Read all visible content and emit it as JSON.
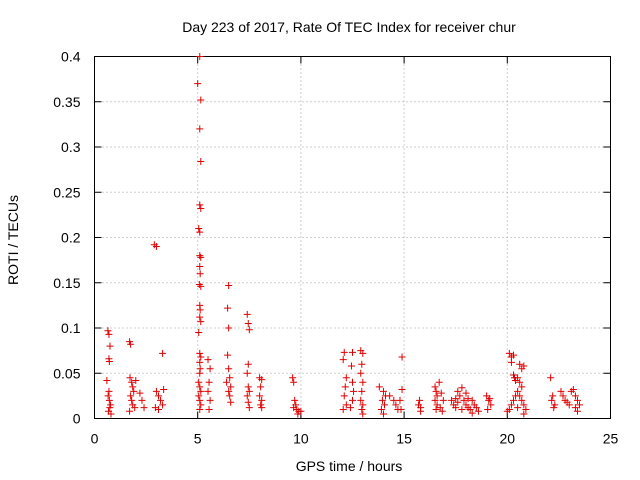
{
  "chart_data": {
    "type": "scatter",
    "title": "Day 223 of 2017, Rate Of TEC Index for receiver chur",
    "xlabel": "GPS time / hours",
    "ylabel": "ROTI / TECUs",
    "xlim": [
      0,
      25
    ],
    "ylim": [
      0,
      0.4
    ],
    "xticks": [
      0,
      5,
      10,
      15,
      20,
      25
    ],
    "xtick_labels": [
      "0",
      "5",
      "10",
      "15",
      "20",
      "25"
    ],
    "yticks": [
      0,
      0.05,
      0.1,
      0.15,
      0.2,
      0.25,
      0.3,
      0.35,
      0.4
    ],
    "ytick_labels": [
      "0",
      "0.05",
      "0.1",
      "0.15",
      "0.2",
      "0.25",
      "0.3",
      "0.35",
      "0.4"
    ],
    "grid": true,
    "marker": "plus",
    "color": "#e00000",
    "series": [
      {
        "name": "ROTI",
        "points": [
          [
            0.6,
            0.042
          ],
          [
            0.65,
            0.097
          ],
          [
            0.7,
            0.093
          ],
          [
            0.7,
            0.066
          ],
          [
            0.72,
            0.063
          ],
          [
            0.75,
            0.08
          ],
          [
            0.7,
            0.03
          ],
          [
            0.72,
            0.02
          ],
          [
            0.74,
            0.012
          ],
          [
            0.68,
            0.008
          ],
          [
            0.8,
            0.005
          ],
          [
            0.78,
            0.015
          ],
          [
            0.66,
            0.025
          ],
          [
            1.7,
            0.085
          ],
          [
            1.75,
            0.082
          ],
          [
            1.72,
            0.045
          ],
          [
            1.8,
            0.04
          ],
          [
            1.85,
            0.035
          ],
          [
            1.9,
            0.03
          ],
          [
            1.75,
            0.025
          ],
          [
            1.8,
            0.02
          ],
          [
            1.85,
            0.015
          ],
          [
            1.95,
            0.012
          ],
          [
            1.7,
            0.008
          ],
          [
            2.0,
            0.042
          ],
          [
            2.2,
            0.028
          ],
          [
            2.3,
            0.02
          ],
          [
            2.4,
            0.012
          ],
          [
            2.9,
            0.192
          ],
          [
            3.0,
            0.19
          ],
          [
            3.3,
            0.072
          ],
          [
            3.0,
            0.03
          ],
          [
            3.1,
            0.025
          ],
          [
            3.2,
            0.02
          ],
          [
            3.3,
            0.015
          ],
          [
            2.95,
            0.012
          ],
          [
            3.1,
            0.01
          ],
          [
            3.35,
            0.032
          ],
          [
            5.0,
            0.37
          ],
          [
            5.1,
            0.4
          ],
          [
            5.15,
            0.352
          ],
          [
            5.1,
            0.32
          ],
          [
            5.15,
            0.284
          ],
          [
            5.1,
            0.236
          ],
          [
            5.15,
            0.232
          ],
          [
            5.05,
            0.21
          ],
          [
            5.1,
            0.206
          ],
          [
            5.1,
            0.18
          ],
          [
            5.15,
            0.178
          ],
          [
            5.1,
            0.168
          ],
          [
            5.12,
            0.16
          ],
          [
            5.08,
            0.148
          ],
          [
            5.15,
            0.146
          ],
          [
            5.1,
            0.125
          ],
          [
            5.12,
            0.12
          ],
          [
            5.1,
            0.112
          ],
          [
            5.15,
            0.107
          ],
          [
            5.05,
            0.095
          ],
          [
            5.1,
            0.072
          ],
          [
            5.15,
            0.068
          ],
          [
            5.1,
            0.062
          ],
          [
            5.12,
            0.055
          ],
          [
            5.1,
            0.05
          ],
          [
            5.05,
            0.04
          ],
          [
            5.1,
            0.035
          ],
          [
            5.15,
            0.03
          ],
          [
            5.05,
            0.025
          ],
          [
            5.1,
            0.02
          ],
          [
            5.15,
            0.015
          ],
          [
            5.1,
            0.01
          ],
          [
            5.5,
            0.065
          ],
          [
            5.6,
            0.055
          ],
          [
            5.55,
            0.04
          ],
          [
            5.5,
            0.03
          ],
          [
            5.6,
            0.02
          ],
          [
            5.55,
            0.01
          ],
          [
            6.5,
            0.147
          ],
          [
            6.45,
            0.122
          ],
          [
            6.5,
            0.1
          ],
          [
            6.45,
            0.07
          ],
          [
            6.5,
            0.055
          ],
          [
            6.55,
            0.045
          ],
          [
            6.4,
            0.04
          ],
          [
            6.6,
            0.035
          ],
          [
            6.5,
            0.03
          ],
          [
            6.55,
            0.025
          ],
          [
            6.6,
            0.018
          ],
          [
            7.4,
            0.115
          ],
          [
            7.45,
            0.105
          ],
          [
            7.5,
            0.098
          ],
          [
            7.45,
            0.06
          ],
          [
            7.4,
            0.05
          ],
          [
            7.45,
            0.035
          ],
          [
            7.5,
            0.03
          ],
          [
            7.4,
            0.025
          ],
          [
            7.45,
            0.018
          ],
          [
            7.5,
            0.012
          ],
          [
            8.0,
            0.045
          ],
          [
            8.1,
            0.043
          ],
          [
            8.05,
            0.035
          ],
          [
            8.0,
            0.025
          ],
          [
            8.1,
            0.02
          ],
          [
            8.05,
            0.015
          ],
          [
            8.1,
            0.012
          ],
          [
            9.6,
            0.045
          ],
          [
            9.65,
            0.04
          ],
          [
            9.7,
            0.02
          ],
          [
            9.75,
            0.015
          ],
          [
            9.8,
            0.01
          ],
          [
            9.9,
            0.008
          ],
          [
            10.0,
            0.008
          ],
          [
            9.85,
            0.005
          ],
          [
            9.65,
            0.012
          ],
          [
            12.1,
            0.073
          ],
          [
            12.05,
            0.065
          ],
          [
            12.2,
            0.045
          ],
          [
            12.15,
            0.035
          ],
          [
            12.1,
            0.025
          ],
          [
            12.2,
            0.015
          ],
          [
            12.05,
            0.01
          ],
          [
            12.5,
            0.073
          ],
          [
            12.45,
            0.058
          ],
          [
            12.5,
            0.04
          ],
          [
            12.55,
            0.03
          ],
          [
            12.5,
            0.02
          ],
          [
            12.4,
            0.012
          ],
          [
            12.9,
            0.075
          ],
          [
            13.0,
            0.072
          ],
          [
            12.95,
            0.06
          ],
          [
            12.9,
            0.05
          ],
          [
            13.0,
            0.04
          ],
          [
            12.95,
            0.03
          ],
          [
            12.9,
            0.02
          ],
          [
            13.0,
            0.015
          ],
          [
            12.95,
            0.01
          ],
          [
            13.0,
            0.005
          ],
          [
            13.8,
            0.035
          ],
          [
            14.0,
            0.03
          ],
          [
            14.1,
            0.025
          ],
          [
            13.95,
            0.02
          ],
          [
            14.05,
            0.015
          ],
          [
            13.9,
            0.01
          ],
          [
            14.0,
            0.005
          ],
          [
            14.3,
            0.025
          ],
          [
            14.5,
            0.02
          ],
          [
            14.6,
            0.015
          ],
          [
            14.7,
            0.01
          ],
          [
            14.8,
            0.02
          ],
          [
            14.9,
            0.068
          ],
          [
            14.9,
            0.032
          ],
          [
            14.85,
            0.01
          ],
          [
            15.7,
            0.015
          ],
          [
            15.8,
            0.012
          ],
          [
            15.75,
            0.02
          ],
          [
            15.8,
            0.008
          ],
          [
            16.5,
            0.035
          ],
          [
            16.55,
            0.03
          ],
          [
            16.6,
            0.025
          ],
          [
            16.5,
            0.02
          ],
          [
            16.6,
            0.015
          ],
          [
            16.55,
            0.01
          ],
          [
            16.7,
            0.04
          ],
          [
            16.8,
            0.028
          ],
          [
            16.9,
            0.02
          ],
          [
            16.75,
            0.012
          ],
          [
            16.85,
            0.008
          ],
          [
            17.3,
            0.02
          ],
          [
            17.4,
            0.015
          ],
          [
            17.5,
            0.012
          ],
          [
            17.6,
            0.018
          ],
          [
            17.7,
            0.025
          ],
          [
            17.8,
            0.01
          ],
          [
            17.9,
            0.02
          ],
          [
            18.0,
            0.015
          ],
          [
            18.1,
            0.012
          ],
          [
            18.2,
            0.01
          ],
          [
            18.3,
            0.02
          ],
          [
            18.4,
            0.015
          ],
          [
            18.5,
            0.012
          ],
          [
            18.6,
            0.008
          ],
          [
            17.6,
            0.03
          ],
          [
            17.8,
            0.034
          ],
          [
            18.0,
            0.028
          ],
          [
            17.5,
            0.022
          ],
          [
            18.3,
            0.006
          ],
          [
            18.1,
            0.022
          ],
          [
            19.0,
            0.025
          ],
          [
            19.1,
            0.02
          ],
          [
            19.2,
            0.015
          ],
          [
            19.05,
            0.01
          ],
          [
            19.15,
            0.022
          ],
          [
            20.1,
            0.072
          ],
          [
            20.2,
            0.068
          ],
          [
            20.3,
            0.07
          ],
          [
            20.2,
            0.062
          ],
          [
            20.3,
            0.048
          ],
          [
            20.35,
            0.045
          ],
          [
            20.4,
            0.042
          ],
          [
            20.6,
            0.06
          ],
          [
            20.7,
            0.055
          ],
          [
            20.8,
            0.058
          ],
          [
            20.5,
            0.045
          ],
          [
            20.6,
            0.04
          ],
          [
            20.7,
            0.035
          ],
          [
            20.5,
            0.03
          ],
          [
            20.6,
            0.025
          ],
          [
            20.7,
            0.02
          ],
          [
            20.8,
            0.015
          ],
          [
            20.3,
            0.02
          ],
          [
            20.2,
            0.015
          ],
          [
            20.1,
            0.01
          ],
          [
            20.0,
            0.008
          ],
          [
            20.5,
            0.012
          ],
          [
            20.9,
            0.01
          ],
          [
            20.8,
            0.005
          ],
          [
            20.4,
            0.025
          ],
          [
            22.1,
            0.045
          ],
          [
            22.2,
            0.025
          ],
          [
            22.15,
            0.02
          ],
          [
            22.3,
            0.015
          ],
          [
            22.25,
            0.012
          ],
          [
            22.6,
            0.03
          ],
          [
            22.7,
            0.025
          ],
          [
            22.8,
            0.02
          ],
          [
            22.9,
            0.018
          ],
          [
            23.0,
            0.015
          ],
          [
            23.1,
            0.03
          ],
          [
            23.2,
            0.032
          ],
          [
            23.3,
            0.025
          ],
          [
            23.4,
            0.02
          ],
          [
            23.5,
            0.015
          ],
          [
            23.3,
            0.012
          ],
          [
            23.4,
            0.008
          ]
        ]
      }
    ]
  }
}
